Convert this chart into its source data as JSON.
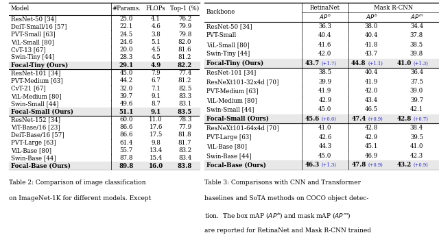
{
  "table2": {
    "headers": [
      "Model",
      "#Params.",
      "FLOPs",
      "Top-1 (%)"
    ],
    "groups": [
      {
        "rows": [
          [
            "ResNet-50 [34]",
            "25.0",
            "4.1",
            "76.2"
          ],
          [
            "DeiT-Small/16 [57]",
            "22.1",
            "4.6",
            "79.9"
          ],
          [
            "PVT-Small [63]",
            "24.5",
            "3.8",
            "79.8"
          ],
          [
            "ViL-Small [80]",
            "24.6",
            "5.1",
            "82.0"
          ],
          [
            "CvT-13 [67]",
            "20.0",
            "4.5",
            "81.6"
          ],
          [
            "Swin-Tiny [44]",
            "28.3",
            "4.5",
            "81.2"
          ],
          [
            "Focal-Tiny (Ours)",
            "29.1",
            "4.9",
            "82.2"
          ]
        ],
        "highlight_last": true
      },
      {
        "rows": [
          [
            "ResNet-101 [34]",
            "45.0",
            "7.9",
            "77.4"
          ],
          [
            "PVT-Medium [63]",
            "44.2",
            "6.7",
            "81.2"
          ],
          [
            "CvT-21 [67]",
            "32.0",
            "7.1",
            "82.5"
          ],
          [
            "ViL-Medium [80]",
            "39.7",
            "9.1",
            "83.3"
          ],
          [
            "Swin-Small [44]",
            "49.6",
            "8.7",
            "83.1"
          ],
          [
            "Focal-Small (Ours)",
            "51.1",
            "9.1",
            "83.5"
          ]
        ],
        "highlight_last": true
      },
      {
        "rows": [
          [
            "ResNet-152 [34]",
            "60.0",
            "11.0",
            "78.3"
          ],
          [
            "ViT-Base/16 [23]",
            "86.6",
            "17.6",
            "77.9"
          ],
          [
            "DeiT-Base/16 [57]",
            "86.6",
            "17.5",
            "81.8"
          ],
          [
            "PVT-Large [63]",
            "61.4",
            "9.8",
            "81.7"
          ],
          [
            "ViL-Base [80]",
            "55.7",
            "13.4",
            "83.2"
          ],
          [
            "Swin-Base [44]",
            "87.8",
            "15.4",
            "83.4"
          ],
          [
            "Focal-Base (Ours)",
            "89.8",
            "16.0",
            "83.8"
          ]
        ],
        "highlight_last": true
      }
    ]
  },
  "table3": {
    "headers": [
      "Backbone",
      "RetinaNet AP^b",
      "Mask R-CNN AP^b",
      "Mask R-CNN AP^m"
    ],
    "groups": [
      {
        "rows": [
          [
            "ResNet-50 [34]",
            "36.3",
            "38.0",
            "34.4"
          ],
          [
            "PVT-Small",
            "40.4",
            "40.4",
            "37.8"
          ],
          [
            "ViL-Small [80]",
            "41.6",
            "41.8",
            "38.5"
          ],
          [
            "Swin-Tiny [44]",
            "42.0",
            "43.7",
            "39.8"
          ],
          [
            "Focal-Tiny (Ours)",
            "43.7",
            "+1.7",
            "44.8",
            "+1.1",
            "41.0",
            "+1.3"
          ]
        ],
        "highlight_last": true
      },
      {
        "rows": [
          [
            "ResNet-101 [34]",
            "38.5",
            "40.4",
            "36.4"
          ],
          [
            "ResNeXt101-32x4d [70]",
            "39.9",
            "41.9",
            "37.5"
          ],
          [
            "PVT-Medium [63]",
            "41.9",
            "42.0",
            "39.0"
          ],
          [
            "ViL-Medium [80]",
            "42.9",
            "43.4",
            "39.7"
          ],
          [
            "Swin-Small [44]",
            "45.0",
            "46.5",
            "42.1"
          ],
          [
            "Focal-Small (Ours)",
            "45.6",
            "+0.6",
            "47.4",
            "+0.9",
            "42.8",
            "+0.7"
          ]
        ],
        "highlight_last": true
      },
      {
        "rows": [
          [
            "ResNeXt101-64x4d [70]",
            "41.0",
            "42.8",
            "38.4"
          ],
          [
            "PVT-Large [63]",
            "42.6",
            "42.9",
            "39.5"
          ],
          [
            "ViL-Base [80]",
            "44.3",
            "45.1",
            "41.0"
          ],
          [
            "Swin-Base [44]",
            "45.0",
            "46.9",
            "42.3"
          ],
          [
            "Focal-Base (Ours)",
            "46.3",
            "+1.3",
            "47.8",
            "+0.9",
            "43.2",
            "+0.9"
          ]
        ],
        "highlight_last": true
      }
    ]
  },
  "caption2_lines": [
    "Table 2: Comparison of image classification",
    "on ImageNet-1K for different models. Except"
  ],
  "caption3_lines": [
    "Table 3: Comparisons with CNN and Transformer",
    "baselines and SoTA methods on COCO object detec-",
    "tion.  The box mAP ($AP^b$) and mask mAP ($AP^m$)",
    "are reported for RetinaNet and Mask R-CNN trained"
  ],
  "highlight_color": "#e8e8e8",
  "blue_color": "#2222cc",
  "fontsize": 6.2,
  "caption_fontsize": 6.5
}
